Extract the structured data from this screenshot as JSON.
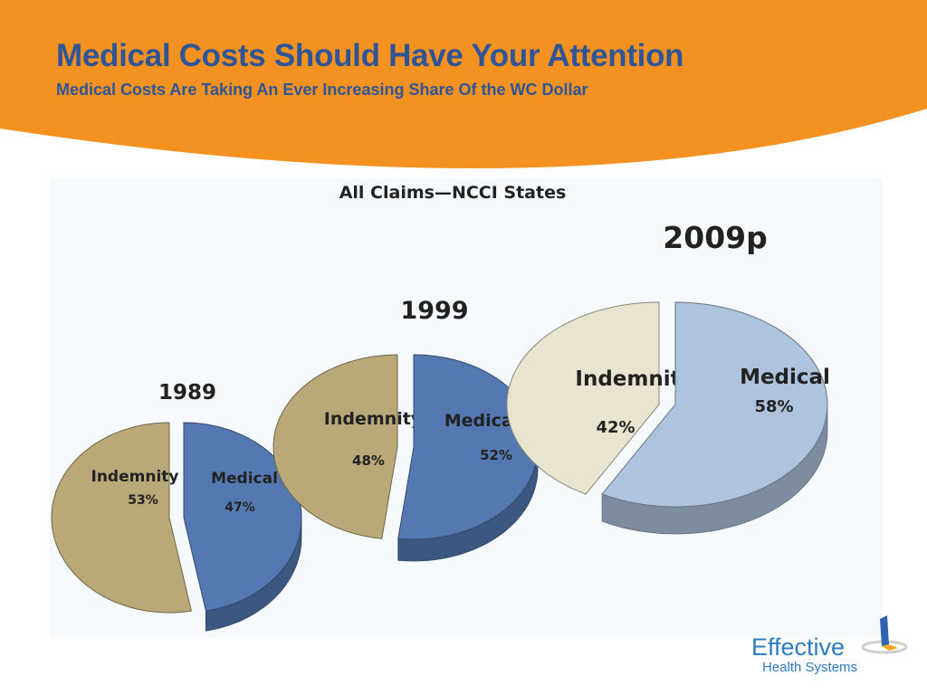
{
  "slide": {
    "title": "Medical Costs Should Have Your Attention",
    "subtitle": "Medical Costs Are Taking An Ever Increasing Share Of the WC Dollar"
  },
  "colors": {
    "banner": "#F39221",
    "title_text": "#2F5597",
    "logo_text": "#2E7DC3",
    "logo_accent": "#F5A623"
  },
  "chart_data": {
    "type": "pie",
    "title": "All Claims—NCCI States",
    "charts": [
      {
        "label": "1989",
        "slices": [
          {
            "name": "Indemnity",
            "value": 53,
            "value_label": "53%",
            "color": "#B9A978"
          },
          {
            "name": "Medical",
            "value": 47,
            "value_label": "47%",
            "color": "#5479B2"
          }
        ]
      },
      {
        "label": "1999",
        "slices": [
          {
            "name": "Indemnity",
            "value": 48,
            "value_label": "48%",
            "color": "#B9A978"
          },
          {
            "name": "Medical",
            "value": 52,
            "value_label": "52%",
            "color": "#5479B2"
          }
        ]
      },
      {
        "label": "2009p",
        "slices": [
          {
            "name": "Indemnity",
            "value": 42,
            "value_label": "42%",
            "color": "#E9E4D0"
          },
          {
            "name": "Medical",
            "value": 58,
            "value_label": "58%",
            "color": "#AEC3DD"
          }
        ]
      }
    ]
  },
  "logo": {
    "word": "Effective",
    "sub": "Health Systems"
  }
}
